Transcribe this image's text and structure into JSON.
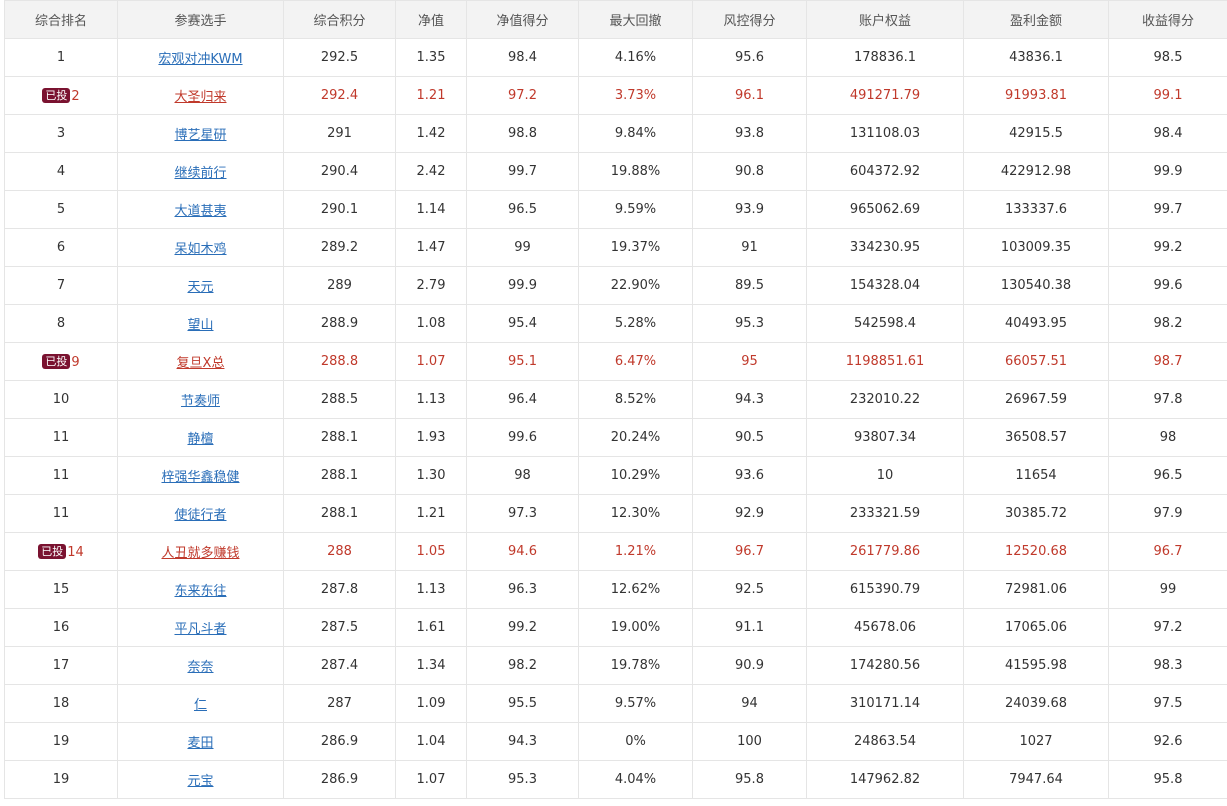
{
  "headers": [
    "综合排名",
    "参赛选手",
    "综合积分",
    "净值",
    "净值得分",
    "最大回撤",
    "风控得分",
    "账户权益",
    "盈利金额",
    "收益得分"
  ],
  "badge_label": "已投",
  "rows": [
    {
      "rank": "1",
      "player": "宏观对冲KWM",
      "score": "292.5",
      "nav": "1.35",
      "nav_score": "98.4",
      "drawdown": "4.16%",
      "risk_score": "95.6",
      "equity": "178836.1",
      "profit": "43836.1",
      "return_score": "98.5",
      "invested": false
    },
    {
      "rank": "2",
      "player": "大圣归来",
      "score": "292.4",
      "nav": "1.21",
      "nav_score": "97.2",
      "drawdown": "3.73%",
      "risk_score": "96.1",
      "equity": "491271.79",
      "profit": "91993.81",
      "return_score": "99.1",
      "invested": true
    },
    {
      "rank": "3",
      "player": "博艺星研",
      "score": "291",
      "nav": "1.42",
      "nav_score": "98.8",
      "drawdown": "9.84%",
      "risk_score": "93.8",
      "equity": "131108.03",
      "profit": "42915.5",
      "return_score": "98.4",
      "invested": false
    },
    {
      "rank": "4",
      "player": "继续前行",
      "score": "290.4",
      "nav": "2.42",
      "nav_score": "99.7",
      "drawdown": "19.88%",
      "risk_score": "90.8",
      "equity": "604372.92",
      "profit": "422912.98",
      "return_score": "99.9",
      "invested": false
    },
    {
      "rank": "5",
      "player": "大道甚夷",
      "score": "290.1",
      "nav": "1.14",
      "nav_score": "96.5",
      "drawdown": "9.59%",
      "risk_score": "93.9",
      "equity": "965062.69",
      "profit": "133337.6",
      "return_score": "99.7",
      "invested": false
    },
    {
      "rank": "6",
      "player": "呆如木鸡",
      "score": "289.2",
      "nav": "1.47",
      "nav_score": "99",
      "drawdown": "19.37%",
      "risk_score": "91",
      "equity": "334230.95",
      "profit": "103009.35",
      "return_score": "99.2",
      "invested": false
    },
    {
      "rank": "7",
      "player": "天元",
      "score": "289",
      "nav": "2.79",
      "nav_score": "99.9",
      "drawdown": "22.90%",
      "risk_score": "89.5",
      "equity": "154328.04",
      "profit": "130540.38",
      "return_score": "99.6",
      "invested": false
    },
    {
      "rank": "8",
      "player": "望山",
      "score": "288.9",
      "nav": "1.08",
      "nav_score": "95.4",
      "drawdown": "5.28%",
      "risk_score": "95.3",
      "equity": "542598.4",
      "profit": "40493.95",
      "return_score": "98.2",
      "invested": false
    },
    {
      "rank": "9",
      "player": "复旦X总",
      "score": "288.8",
      "nav": "1.07",
      "nav_score": "95.1",
      "drawdown": "6.47%",
      "risk_score": "95",
      "equity": "1198851.61",
      "profit": "66057.51",
      "return_score": "98.7",
      "invested": true
    },
    {
      "rank": "10",
      "player": "节奏师",
      "score": "288.5",
      "nav": "1.13",
      "nav_score": "96.4",
      "drawdown": "8.52%",
      "risk_score": "94.3",
      "equity": "232010.22",
      "profit": "26967.59",
      "return_score": "97.8",
      "invested": false
    },
    {
      "rank": "11",
      "player": "静檀",
      "score": "288.1",
      "nav": "1.93",
      "nav_score": "99.6",
      "drawdown": "20.24%",
      "risk_score": "90.5",
      "equity": "93807.34",
      "profit": "36508.57",
      "return_score": "98",
      "invested": false
    },
    {
      "rank": "11",
      "player": "梓强华鑫稳健",
      "score": "288.1",
      "nav": "1.30",
      "nav_score": "98",
      "drawdown": "10.29%",
      "risk_score": "93.6",
      "equity": "10",
      "profit": "11654",
      "return_score": "96.5",
      "invested": false
    },
    {
      "rank": "11",
      "player": "使徒行者",
      "score": "288.1",
      "nav": "1.21",
      "nav_score": "97.3",
      "drawdown": "12.30%",
      "risk_score": "92.9",
      "equity": "233321.59",
      "profit": "30385.72",
      "return_score": "97.9",
      "invested": false
    },
    {
      "rank": "14",
      "player": "人丑就多赚钱",
      "score": "288",
      "nav": "1.05",
      "nav_score": "94.6",
      "drawdown": "1.21%",
      "risk_score": "96.7",
      "equity": "261779.86",
      "profit": "12520.68",
      "return_score": "96.7",
      "invested": true
    },
    {
      "rank": "15",
      "player": "东来东往",
      "score": "287.8",
      "nav": "1.13",
      "nav_score": "96.3",
      "drawdown": "12.62%",
      "risk_score": "92.5",
      "equity": "615390.79",
      "profit": "72981.06",
      "return_score": "99",
      "invested": false
    },
    {
      "rank": "16",
      "player": "平凡斗者",
      "score": "287.5",
      "nav": "1.61",
      "nav_score": "99.2",
      "drawdown": "19.00%",
      "risk_score": "91.1",
      "equity": "45678.06",
      "profit": "17065.06",
      "return_score": "97.2",
      "invested": false
    },
    {
      "rank": "17",
      "player": "奈奈",
      "score": "287.4",
      "nav": "1.34",
      "nav_score": "98.2",
      "drawdown": "19.78%",
      "risk_score": "90.9",
      "equity": "174280.56",
      "profit": "41595.98",
      "return_score": "98.3",
      "invested": false
    },
    {
      "rank": "18",
      "player": "仁",
      "score": "287",
      "nav": "1.09",
      "nav_score": "95.5",
      "drawdown": "9.57%",
      "risk_score": "94",
      "equity": "310171.14",
      "profit": "24039.68",
      "return_score": "97.5",
      "invested": false
    },
    {
      "rank": "19",
      "player": "麦田",
      "score": "286.9",
      "nav": "1.04",
      "nav_score": "94.3",
      "drawdown": "0%",
      "risk_score": "100",
      "equity": "24863.54",
      "profit": "1027",
      "return_score": "92.6",
      "invested": false
    },
    {
      "rank": "19",
      "player": "元宝",
      "score": "286.9",
      "nav": "1.07",
      "nav_score": "95.3",
      "drawdown": "4.04%",
      "risk_score": "95.8",
      "equity": "147962.82",
      "profit": "7947.64",
      "return_score": "95.8",
      "invested": false
    }
  ]
}
